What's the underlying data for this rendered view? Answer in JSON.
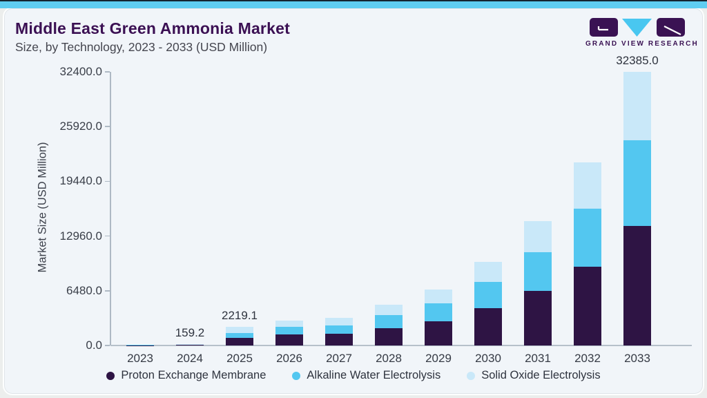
{
  "header": {
    "title": "Middle East Green Ammonia Market",
    "subtitle": "Size, by Technology, 2023 - 2033 (USD Million)"
  },
  "logo": {
    "brand": "GRAND VIEW RESEARCH",
    "block_color": "#3A1253",
    "triangle_color": "#49C7F0"
  },
  "chart_data": {
    "type": "bar",
    "stacked": true,
    "title": "Middle East Green Ammonia Market Size, by Technology, 2023 - 2033 (USD Million)",
    "xlabel": "",
    "ylabel": "Market Size (USD Million)",
    "ylim": [
      0,
      32400
    ],
    "grid": false,
    "legend_position": "bottom",
    "categories": [
      "2023",
      "2024",
      "2025",
      "2026",
      "2027",
      "2028",
      "2029",
      "2030",
      "2031",
      "2032",
      "2033"
    ],
    "series": [
      {
        "name": "Proton Exchange Membrane",
        "color": "#2E1444",
        "values": [
          32,
          62.5,
          872.0,
          1310,
          1390,
          2050,
          2870,
          4430,
          6480,
          9350,
          14125
        ]
      },
      {
        "name": "Alkaline Water Electrolysis",
        "color": "#53C7F0",
        "values": [
          24,
          45.9,
          634.0,
          900,
          980,
          1560,
          2130,
          3120,
          4590,
          6810,
          10163
        ]
      },
      {
        "name": "Solid Oxide Electrolysis",
        "color": "#C9E8F9",
        "values": [
          24,
          50.8,
          713.1,
          740,
          900,
          1230,
          1640,
          2380,
          3690,
          5490,
          8097
        ]
      }
    ],
    "totals": [
      80,
      159.2,
      2219.1,
      2950,
      3270,
      4840,
      6640,
      9930,
      14760,
      21650,
      32385
    ],
    "data_labels": [
      "",
      "159.2",
      "2219.1",
      "",
      "",
      "",
      "",
      "",
      "",
      "",
      "32385.0"
    ],
    "yticks": {
      "values": [
        0,
        6480,
        12960,
        19440,
        25920,
        32400
      ],
      "labels": [
        "0.0",
        "6480.0",
        "12960.0",
        "19440.0",
        "25920.0",
        "32400.0"
      ]
    }
  }
}
